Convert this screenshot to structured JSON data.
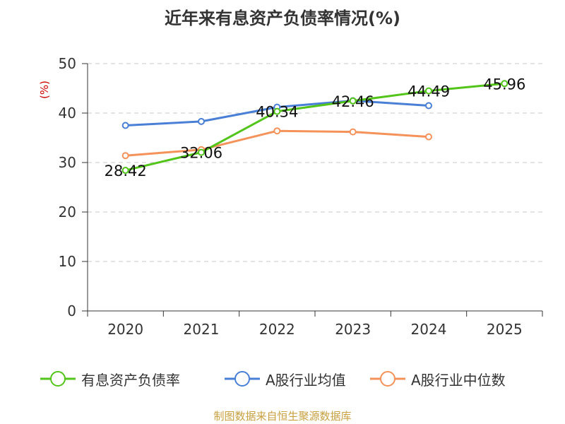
{
  "chart_data": {
    "type": "line",
    "title": "近年来有息资产负债率情况(%)",
    "ylabel": "(%)",
    "xlabel": "",
    "categories": [
      "2020",
      "2021",
      "2022",
      "2023",
      "2024",
      "2025"
    ],
    "ylim": [
      0,
      50
    ],
    "yticks": [
      0,
      10,
      20,
      30,
      40,
      50
    ],
    "grid": true,
    "legend_position": "bottom",
    "series": [
      {
        "name": "有息资产负债率",
        "color": "#52c41a",
        "values": [
          28.42,
          32.06,
          40.34,
          42.46,
          44.49,
          45.96
        ],
        "labels": [
          "28.42",
          "32.06",
          "40.34",
          "42.46",
          "44.49",
          "45.96"
        ]
      },
      {
        "name": "A股行业均值",
        "color": "#4a7fd6",
        "values": [
          37.5,
          38.3,
          41.2,
          42.5,
          41.5,
          null
        ]
      },
      {
        "name": "A股行业中位数",
        "color": "#f5925a",
        "values": [
          31.4,
          32.6,
          36.4,
          36.2,
          35.2,
          null
        ]
      }
    ]
  },
  "source": "制图数据来自恒生聚源数据库"
}
